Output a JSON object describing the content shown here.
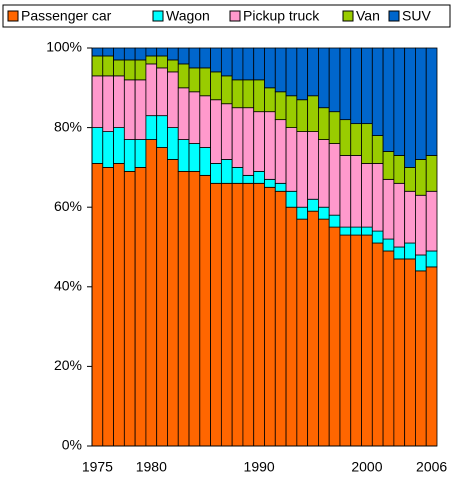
{
  "chart_data": {
    "type": "stacked_bar",
    "categories": [
      "1975",
      null,
      null,
      null,
      null,
      "1980",
      null,
      null,
      null,
      null,
      null,
      null,
      null,
      null,
      null,
      "1990",
      null,
      null,
      null,
      null,
      null,
      null,
      null,
      null,
      null,
      "2000",
      null,
      null,
      null,
      null,
      null,
      "2006"
    ],
    "series": [
      {
        "name": "Passenger car",
        "color": "#ff6600",
        "values": [
          71,
          70,
          71,
          69,
          70,
          77,
          75,
          72,
          69,
          69,
          68,
          66,
          66,
          66,
          66,
          66,
          65,
          64,
          60,
          57,
          59,
          57,
          55,
          53,
          53,
          53,
          51,
          49,
          47,
          47,
          44,
          45
        ]
      },
      {
        "name": "Wagon",
        "color": "#00ffff",
        "values": [
          9,
          9,
          9,
          8,
          7,
          6,
          8,
          8,
          8,
          7,
          7,
          5,
          6,
          4,
          2,
          3,
          2,
          2,
          4,
          3,
          3,
          3,
          3,
          2,
          2,
          2,
          3,
          3,
          3,
          4,
          4,
          4
        ]
      },
      {
        "name": "Pickup truck",
        "color": "#ff99cc",
        "values": [
          13,
          14,
          13,
          15,
          15,
          13,
          12,
          14,
          13,
          13,
          13,
          16,
          14,
          15,
          17,
          15,
          17,
          16,
          16,
          19,
          17,
          17,
          18,
          18,
          18,
          16,
          17,
          15,
          16,
          13,
          15,
          15
        ]
      },
      {
        "name": "Van",
        "color": "#99cc00",
        "values": [
          5,
          5,
          4,
          5,
          5,
          2,
          3,
          3,
          6,
          6,
          7,
          7,
          7,
          7,
          7,
          8,
          6,
          7,
          8,
          8,
          9,
          8,
          8,
          9,
          8,
          10,
          7,
          7,
          7,
          6,
          9,
          9
        ]
      },
      {
        "name": "SUV",
        "color": "#0066cc",
        "values": [
          2,
          2,
          3,
          3,
          3,
          2,
          2,
          3,
          4,
          5,
          5,
          6,
          7,
          8,
          8,
          8,
          10,
          11,
          12,
          13,
          12,
          15,
          16,
          18,
          19,
          19,
          22,
          26,
          27,
          30,
          28,
          27
        ]
      }
    ],
    "ylim": [
      0,
      100
    ],
    "yticks": [
      {
        "value": 0,
        "label": "0%"
      },
      {
        "value": 20,
        "label": "20%"
      },
      {
        "value": 40,
        "label": "40%"
      },
      {
        "value": 60,
        "label": "60%"
      },
      {
        "value": 80,
        "label": "80%"
      },
      {
        "value": 100,
        "label": "100%"
      }
    ],
    "legend": "top"
  }
}
